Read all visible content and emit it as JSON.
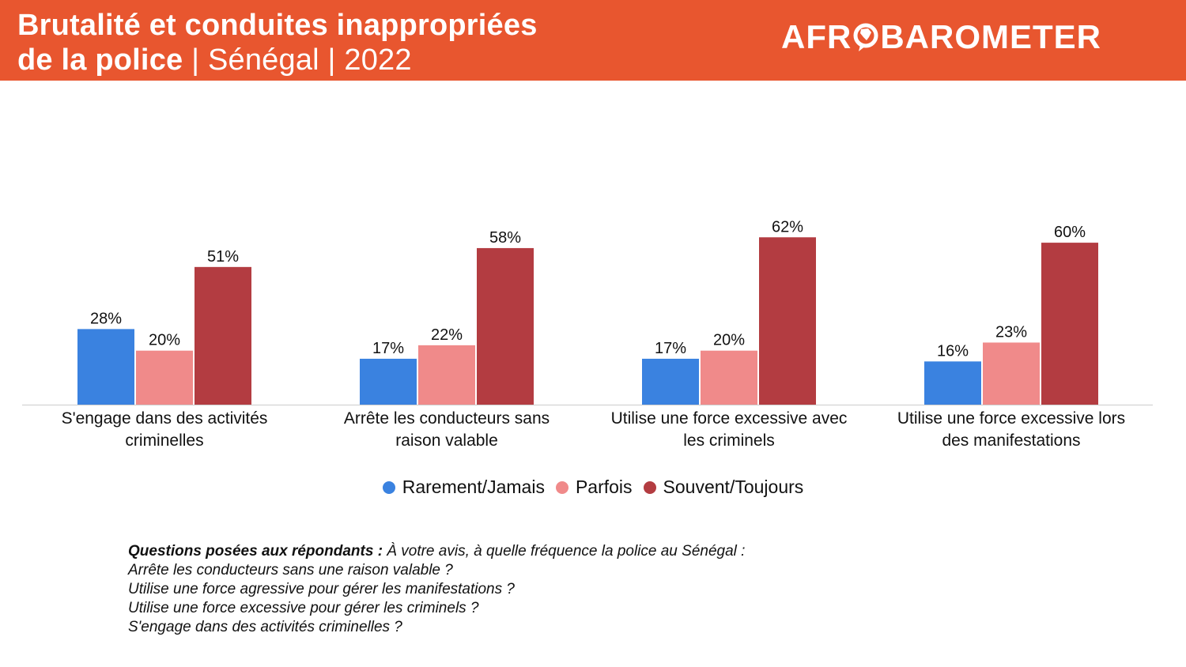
{
  "header": {
    "title_bold_1": "Brutalité et conduites inappropriées",
    "title_bold_2": "de la police",
    "title_light": " | Sénégal | 2022",
    "logo_left": "AFR",
    "logo_right": "BAROMETER",
    "logo_icon": "africa-globe-icon"
  },
  "colors": {
    "header_bg": "#e8562f",
    "rarement": "#3a82e0",
    "parfois": "#f08a8a",
    "souvent": "#b33c41"
  },
  "chart_data": {
    "type": "bar",
    "categories": [
      "S'engage dans des activités criminelles",
      "Arrête les conducteurs sans raison valable",
      "Utilise une force excessive avec les criminels",
      "Utilise une force excessive lors des manifestations"
    ],
    "category_lines": [
      [
        "S'engage dans des activités",
        "criminelles"
      ],
      [
        "Arrête les conducteurs sans",
        "raison valable"
      ],
      [
        "Utilise une force excessive avec",
        "les criminels"
      ],
      [
        "Utilise une force excessive lors",
        "des manifestations"
      ]
    ],
    "series": [
      {
        "name": "Rarement/Jamais",
        "color": "#3a82e0",
        "values": [
          28,
          17,
          17,
          16
        ]
      },
      {
        "name": "Parfois",
        "color": "#f08a8a",
        "values": [
          20,
          22,
          20,
          23
        ]
      },
      {
        "name": "Souvent/Toujours",
        "color": "#b33c41",
        "values": [
          51,
          58,
          62,
          60
        ]
      }
    ],
    "value_suffix": "%",
    "ylim": [
      0,
      62
    ],
    "grid": false,
    "legend_position": "bottom-center"
  },
  "footnote": {
    "lead": "Questions posées aux répondants :",
    "intro": " À votre avis, à quelle fréquence la police au Sénégal :",
    "lines": [
      "Arrête les conducteurs sans une raison valable ?",
      "Utilise une force agressive pour gérer les manifestations ?",
      "Utilise une force excessive pour gérer les criminels ?",
      "S'engage dans des activités criminelles ?"
    ]
  }
}
